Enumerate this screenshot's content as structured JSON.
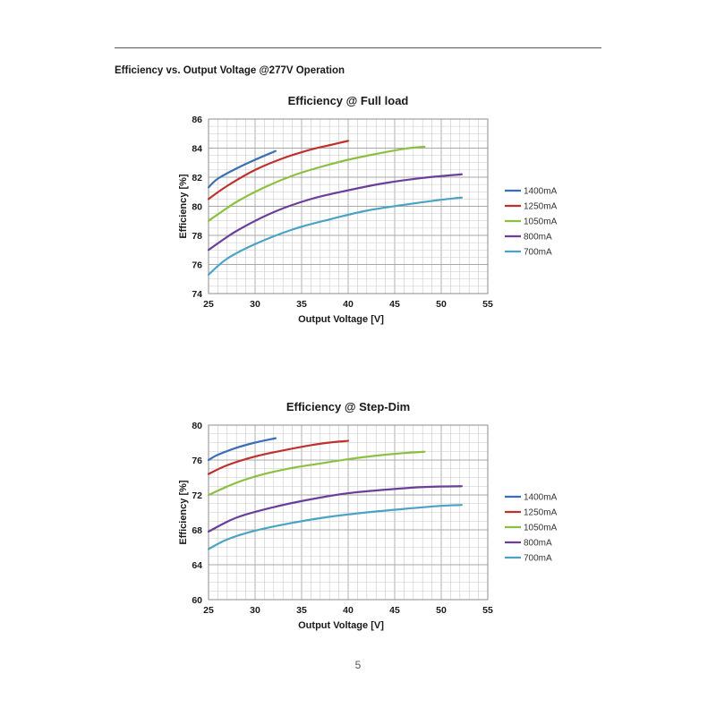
{
  "header": {
    "section_title": "Efficiency vs. Output Voltage @277V Operation"
  },
  "footer": {
    "page_number": "5"
  },
  "series_colors": {
    "1400mA": "#3b6eb4",
    "1250mA": "#c0312e",
    "1050mA": "#8cc043",
    "800mA": "#6a3f99",
    "700mA": "#4aa3c5"
  },
  "chart_data": [
    {
      "type": "line",
      "title": "Efficiency @ Full load",
      "xlabel": "Output Voltage [V]",
      "ylabel": "Efficiency [%]",
      "xlim": [
        25,
        55
      ],
      "ylim": [
        74,
        86
      ],
      "xticks": [
        25,
        30,
        35,
        40,
        45,
        50,
        55
      ],
      "yticks": [
        74,
        76,
        78,
        80,
        82,
        84,
        86
      ],
      "grid": true,
      "legend_position": "right",
      "series": [
        {
          "name": "1400mA",
          "x": [
            25,
            26,
            28,
            30,
            32.2
          ],
          "y": [
            81.3,
            81.9,
            82.6,
            83.2,
            83.8
          ]
        },
        {
          "name": "1250mA",
          "x": [
            25,
            27,
            30,
            33,
            36,
            38,
            40
          ],
          "y": [
            80.5,
            81.4,
            82.5,
            83.3,
            83.9,
            84.2,
            84.5
          ]
        },
        {
          "name": "1050mA",
          "x": [
            25,
            28,
            31,
            34,
            37,
            40,
            43,
            46,
            48.2
          ],
          "y": [
            79.0,
            80.3,
            81.3,
            82.1,
            82.7,
            83.2,
            83.6,
            83.95,
            84.1
          ]
        },
        {
          "name": "800mA",
          "x": [
            25,
            28,
            32,
            36,
            40,
            44,
            48,
            52.2
          ],
          "y": [
            77.0,
            78.3,
            79.6,
            80.5,
            81.1,
            81.6,
            81.95,
            82.2
          ]
        },
        {
          "name": "700mA",
          "x": [
            25,
            27,
            30,
            34,
            38,
            42,
            46,
            50,
            52.2
          ],
          "y": [
            75.3,
            76.4,
            77.4,
            78.4,
            79.1,
            79.7,
            80.1,
            80.45,
            80.6
          ]
        }
      ]
    },
    {
      "type": "line",
      "title": "Efficiency @ Step-Dim",
      "xlabel": "Output Voltage [V]",
      "ylabel": "Efficiency [%]",
      "xlim": [
        25,
        55
      ],
      "ylim": [
        60,
        80
      ],
      "xticks": [
        25,
        30,
        35,
        40,
        45,
        50,
        55
      ],
      "yticks": [
        60,
        64,
        68,
        72,
        76,
        80
      ],
      "grid": true,
      "legend_position": "right",
      "series": [
        {
          "name": "1400mA",
          "x": [
            25,
            26,
            28,
            30,
            32.2
          ],
          "y": [
            76.0,
            76.6,
            77.4,
            78.0,
            78.5
          ]
        },
        {
          "name": "1250mA",
          "x": [
            25,
            27,
            30,
            33,
            36,
            38,
            40
          ],
          "y": [
            74.4,
            75.4,
            76.4,
            77.1,
            77.7,
            78.0,
            78.2
          ]
        },
        {
          "name": "1050mA",
          "x": [
            25,
            28,
            31,
            34,
            37,
            40,
            43,
            46,
            48.2
          ],
          "y": [
            72.0,
            73.4,
            74.4,
            75.1,
            75.6,
            76.1,
            76.5,
            76.8,
            76.95
          ]
        },
        {
          "name": "800mA",
          "x": [
            25,
            28,
            32,
            36,
            40,
            44,
            48,
            52.2
          ],
          "y": [
            67.8,
            69.4,
            70.6,
            71.5,
            72.2,
            72.6,
            72.9,
            73.0
          ]
        },
        {
          "name": "700mA",
          "x": [
            25,
            27,
            30,
            34,
            38,
            42,
            46,
            50,
            52.2
          ],
          "y": [
            65.8,
            66.9,
            67.9,
            68.8,
            69.5,
            70.0,
            70.4,
            70.75,
            70.85
          ]
        }
      ]
    }
  ]
}
